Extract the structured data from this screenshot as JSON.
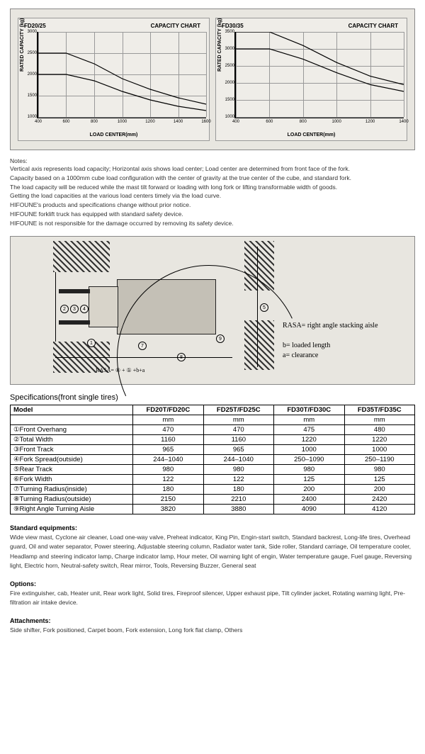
{
  "charts": {
    "background_color": "#e8e6e0",
    "panel_bg": "#efede8",
    "grid_color": "#999999",
    "axis_color": "#000000",
    "x_label": "LOAD CENTER(mm)",
    "y_label": "RATED CAPACITY (kg)",
    "left": {
      "title": "FD20/25",
      "subtitle": "CAPACITY CHART",
      "xlim": [
        400,
        1600
      ],
      "ylim": [
        1000,
        3000
      ],
      "xticks": [
        400,
        600,
        800,
        1000,
        1200,
        1400,
        1600
      ],
      "yticks": [
        1000,
        1500,
        2000,
        2500,
        3000
      ],
      "curves": [
        {
          "points": [
            [
              400,
              2500
            ],
            [
              600,
              2500
            ],
            [
              800,
              2250
            ],
            [
              1000,
              1900
            ],
            [
              1200,
              1650
            ],
            [
              1400,
              1450
            ],
            [
              1600,
              1300
            ]
          ]
        },
        {
          "points": [
            [
              400,
              2000
            ],
            [
              600,
              2000
            ],
            [
              800,
              1850
            ],
            [
              1000,
              1600
            ],
            [
              1200,
              1400
            ],
            [
              1400,
              1250
            ],
            [
              1600,
              1150
            ]
          ]
        }
      ]
    },
    "right": {
      "title": "FD30/35",
      "subtitle": "CAPACITY CHART",
      "xlim": [
        400,
        1400
      ],
      "ylim": [
        1000,
        3500
      ],
      "xticks": [
        400,
        600,
        800,
        1000,
        1200,
        1400
      ],
      "yticks": [
        1000,
        1500,
        2000,
        2500,
        3000,
        3500
      ],
      "curves": [
        {
          "points": [
            [
              400,
              3500
            ],
            [
              600,
              3500
            ],
            [
              800,
              3100
            ],
            [
              1000,
              2600
            ],
            [
              1200,
              2200
            ],
            [
              1400,
              1950
            ]
          ]
        },
        {
          "points": [
            [
              400,
              3000
            ],
            [
              600,
              3000
            ],
            [
              800,
              2700
            ],
            [
              1000,
              2300
            ],
            [
              1200,
              1950
            ],
            [
              1400,
              1750
            ]
          ]
        }
      ]
    }
  },
  "notes": {
    "title": "Notes:",
    "lines": [
      "Vertical axis represents load capacity; Horizontal axis shows load center; Load center are determined from front face of the fork.",
      "Capacity based on a 1000mm cube load configuration with the center of gravity at the true center of the cube, and standard fork.",
      "The load capacity will be reduced while the mast tilt forward or loading with long fork or lifting transformable width of goods.",
      "Getting the load capacities at the various load centers timely via the load curve.",
      "HIFOUNE's products and specifications change without prior notice.",
      "HIFOUNE forklift truck has equipped with standard safety device.",
      "HIFOUNE is not responsible for the damage occurred by removing its safety device."
    ]
  },
  "diagram": {
    "rasa_formula": "RASA= ⑧ + ① +b+a",
    "labels": {
      "rasa": "RASA= right angle stacking aisle",
      "b": "b= loaded length",
      "a": "a= clearance"
    },
    "dim_numbers": [
      "1",
      "2",
      "3",
      "4",
      "5",
      "6",
      "7",
      "8",
      "9"
    ]
  },
  "specs": {
    "title": "Specifications(front single tires)",
    "columns": [
      "Model",
      "FD20T/FD20C",
      "FD25T/FD25C",
      "FD30T/FD30C",
      "FD35T/FD35C"
    ],
    "unit_row": [
      "",
      "mm",
      "mm",
      "mm",
      "mm"
    ],
    "rows": [
      {
        "label": "①Front Overhang",
        "v": [
          "470",
          "470",
          "475",
          "480"
        ]
      },
      {
        "label": "②Total Width",
        "v": [
          "1160",
          "1160",
          "1220",
          "1220"
        ]
      },
      {
        "label": "③Front Track",
        "v": [
          "965",
          "965",
          "1000",
          "1000"
        ]
      },
      {
        "label": "④Fork Spread(outside)",
        "v": [
          "244–1040",
          "244–1040",
          "250–1090",
          "250–1190"
        ]
      },
      {
        "label": "⑤Rear Track",
        "v": [
          "980",
          "980",
          "980",
          "980"
        ]
      },
      {
        "label": "⑥Fork Width",
        "v": [
          "122",
          "122",
          "125",
          "125"
        ]
      },
      {
        "label": "⑦Turning Radius(inside)",
        "v": [
          "180",
          "180",
          "200",
          "200"
        ]
      },
      {
        "label": "⑧Turning Radius(outside)",
        "v": [
          "2150",
          "2210",
          "2400",
          "2420"
        ]
      },
      {
        "label": "⑨Right Angle Turning Aisle",
        "v": [
          "3820",
          "3880",
          "4090",
          "4120"
        ]
      }
    ]
  },
  "equip": {
    "title": "Standard equipments:",
    "text": "Wide view mast, Cyclone air cleaner, Load one-way valve, Preheat indicator, King Pin, Engin-start switch, Standard backrest, Long-life tires, Overhead guard, Oil and water separator, Power steering, Adjustable steering column, Radiator water tank, Side roller, Standard carriage, Oil temperature cooler, Headlamp and steering indicator lamp, Charge indicator lamp, Hour meter, Oil warning light of engin, Water temperature gauge, Fuel gauge, Reversing light, Electric horn, Neutral-safety switch, Rear mirror, Tools, Reversing Buzzer, General seat"
  },
  "options": {
    "title": "Options:",
    "text": "Fire extinguisher, cab, Heater unit, Rear work light, Solid tires, Fireproof silencer, Upper exhaust pipe, Tilt cylinder jacket, Rotating warning light, Pre-filtration air intake device."
  },
  "attach": {
    "title": "Attachments:",
    "text": "Side shifter, Fork positioned, Carpet boom, Fork extension, Long fork flat clamp, Others"
  }
}
